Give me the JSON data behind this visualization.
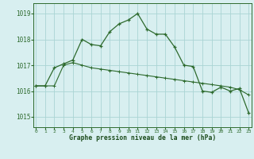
{
  "line1_x": [
    0,
    1,
    2,
    3,
    4,
    5,
    6,
    7,
    8,
    9,
    10,
    11,
    12,
    13,
    14,
    15,
    16,
    17,
    18,
    19,
    20,
    21,
    22,
    23
  ],
  "line1_y": [
    1016.2,
    1016.2,
    1016.9,
    1017.05,
    1017.2,
    1018.0,
    1017.8,
    1017.75,
    1018.3,
    1018.6,
    1018.75,
    1019.0,
    1018.4,
    1018.2,
    1018.2,
    1017.7,
    1017.0,
    1016.95,
    1016.0,
    1015.95,
    1016.15,
    1016.0,
    1016.1,
    1015.15
  ],
  "line2_x": [
    0,
    1,
    2,
    3,
    4,
    5,
    6,
    7,
    8,
    9,
    10,
    11,
    12,
    13,
    14,
    15,
    16,
    17,
    18,
    19,
    20,
    21,
    22,
    23
  ],
  "line2_y": [
    1016.2,
    1016.2,
    1016.2,
    1017.0,
    1017.1,
    1017.0,
    1016.9,
    1016.85,
    1016.8,
    1016.75,
    1016.7,
    1016.65,
    1016.6,
    1016.55,
    1016.5,
    1016.45,
    1016.4,
    1016.35,
    1016.3,
    1016.25,
    1016.2,
    1016.15,
    1016.05,
    1015.85
  ],
  "line_color": "#2d6a2d",
  "bg_color": "#d8eff0",
  "grid_color": "#aad4d4",
  "xlabel": "Graphe pression niveau de la mer (hPa)",
  "xlabel_color": "#1a4a1a",
  "tick_color": "#2d6a2d",
  "ylim": [
    1014.6,
    1019.4
  ],
  "xlim": [
    -0.3,
    23.3
  ],
  "yticks": [
    1015,
    1016,
    1017,
    1018,
    1019
  ],
  "xticks": [
    0,
    1,
    2,
    3,
    4,
    5,
    6,
    7,
    8,
    9,
    10,
    11,
    12,
    13,
    14,
    15,
    16,
    17,
    18,
    19,
    20,
    21,
    22,
    23
  ],
  "xtick_labels": [
    "0",
    "1",
    "2",
    "3",
    "4",
    "5",
    "6",
    "7",
    "8",
    "9",
    "10",
    "11",
    "12",
    "13",
    "14",
    "15",
    "16",
    "17",
    "18",
    "19",
    "20",
    "21",
    "22",
    "23"
  ]
}
